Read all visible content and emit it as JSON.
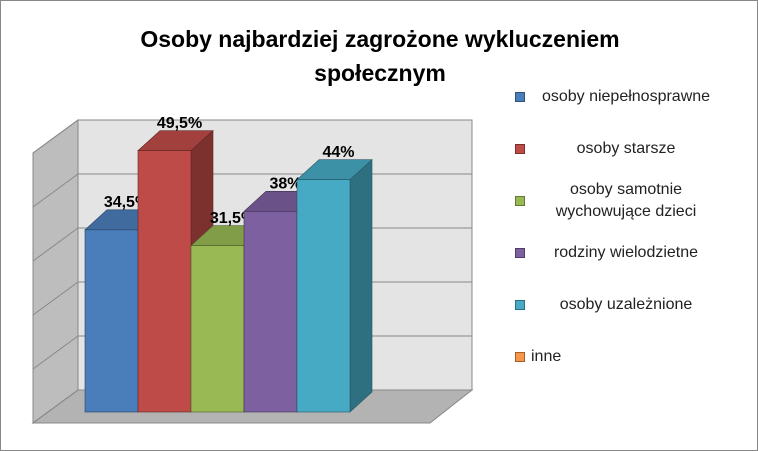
{
  "chart_data": {
    "type": "bar3d",
    "title": "Osoby najbardziej zagrożone wykluczeniem społecznym",
    "categories": [
      "osoby niepełnosprawne",
      "osoby starsze",
      "osoby samotnie wychowujące dzieci",
      "rodziny wielodzietne",
      "osoby uzależnione",
      "inne"
    ],
    "values": [
      34.5,
      49.5,
      31.5,
      38,
      44,
      null
    ],
    "value_labels": [
      "34,5%",
      "49,5%",
      "31,5%",
      "38%",
      "44%",
      null
    ],
    "colors": [
      "#4a7ebb",
      "#be4b48",
      "#98b954",
      "#7d60a0",
      "#46aac5",
      "#f79646"
    ],
    "ylim": [
      0,
      50
    ],
    "yticks": [
      0,
      10,
      20,
      30,
      40,
      50
    ],
    "grid": true
  }
}
